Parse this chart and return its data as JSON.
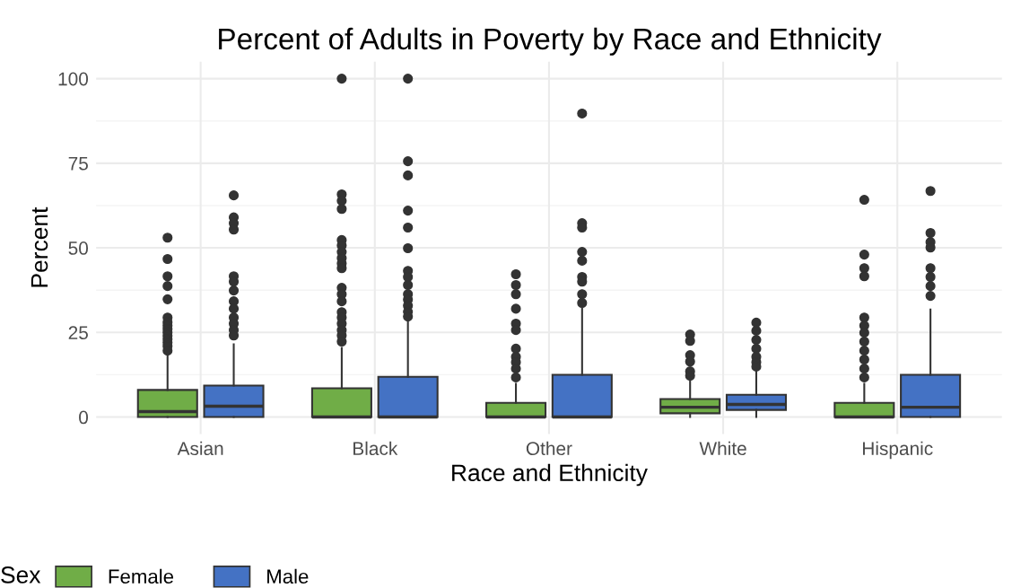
{
  "chart_data": {
    "type": "box",
    "title": "Percent of Adults in Poverty by Race and Ethnicity",
    "xlabel": "Race and Ethnicity",
    "ylabel": "Percent",
    "legend_title": "Sex",
    "categories": [
      "Asian",
      "Black",
      "Other",
      "White",
      "Hispanic"
    ],
    "ylim": [
      -5,
      105
    ],
    "yticks": [
      0,
      25,
      50,
      75,
      100
    ],
    "grid": true,
    "legend": "bottom",
    "series": [
      {
        "name": "Female",
        "color": "#70ad47",
        "boxes": [
          {
            "low": 0,
            "q1": 0,
            "median": 1.6,
            "q3": 8,
            "high": 18.8,
            "outliers": [
              53,
              46.7,
              41.6,
              38.7,
              34.8,
              29.4,
              28,
              27,
              26,
              25,
              24,
              23,
              22,
              21,
              19.6
            ]
          },
          {
            "low": 0,
            "q1": 0,
            "median": 0,
            "q3": 8.5,
            "high": 20.4,
            "outliers": [
              100,
              65.8,
              63.9,
              61.5,
              52.3,
              50.7,
              48.8,
              47,
              45.4,
              44,
              38.2,
              36.3,
              34.2,
              31,
              29.4,
              27.6,
              25.7,
              24.1,
              22.3
            ]
          },
          {
            "low": 0,
            "q1": 0,
            "median": 0,
            "q3": 4.2,
            "high": 9.8,
            "outliers": [
              42.2,
              39,
              36.3,
              32,
              27.6,
              25.7,
              20.2,
              17.8,
              16.2,
              14.3,
              11.7
            ]
          },
          {
            "low": 0,
            "q1": 1.1,
            "median": 2.9,
            "q3": 5.3,
            "high": 10.9,
            "outliers": [
              24.4,
              22.5,
              18.3,
              16.4,
              13.5,
              12.2
            ]
          },
          {
            "low": 0,
            "q1": 0,
            "median": 0,
            "q3": 4.2,
            "high": 9.8,
            "outliers": [
              64.2,
              48,
              44,
              41.6,
              29.4,
              27,
              24.9,
              22.3,
              19.6,
              17,
              14.3,
              11.7
            ]
          }
        ]
      },
      {
        "name": "Male",
        "color": "#4472c4",
        "boxes": [
          {
            "low": 0,
            "q1": 0,
            "median": 3.2,
            "q3": 9.3,
            "high": 21.5,
            "outliers": [
              65.5,
              59,
              57.3,
              55.4,
              41.6,
              40,
              37.4,
              34.2,
              32,
              29.4,
              27.6,
              25.7,
              24.1
            ]
          },
          {
            "low": 0,
            "q1": 0,
            "median": 0,
            "q3": 11.9,
            "high": 28.9,
            "outliers": [
              100,
              75.6,
              71.4,
              61,
              56,
              49.9,
              43.2,
              41.4,
              39,
              36.3,
              34.7,
              32.9,
              31.1,
              29.7
            ]
          },
          {
            "low": 0,
            "q1": 0,
            "median": 0,
            "q3": 12.5,
            "high": 32,
            "outliers": [
              89.7,
              57.3,
              56,
              48.8,
              46.2,
              41.4,
              40,
              36.3,
              33.7
            ]
          },
          {
            "low": 0,
            "q1": 2.1,
            "median": 3.7,
            "q3": 6.6,
            "high": 13.5,
            "outliers": [
              27.9,
              25.5,
              22.8,
              20.2,
              17.8,
              16.2,
              14.9
            ]
          },
          {
            "low": 0,
            "q1": 0,
            "median": 2.9,
            "q3": 12.5,
            "high": 31.8,
            "outliers": [
              66.8,
              54.4,
              51.7,
              50.1,
              44,
              41.4,
              38.7,
              35.8
            ]
          }
        ]
      }
    ]
  }
}
